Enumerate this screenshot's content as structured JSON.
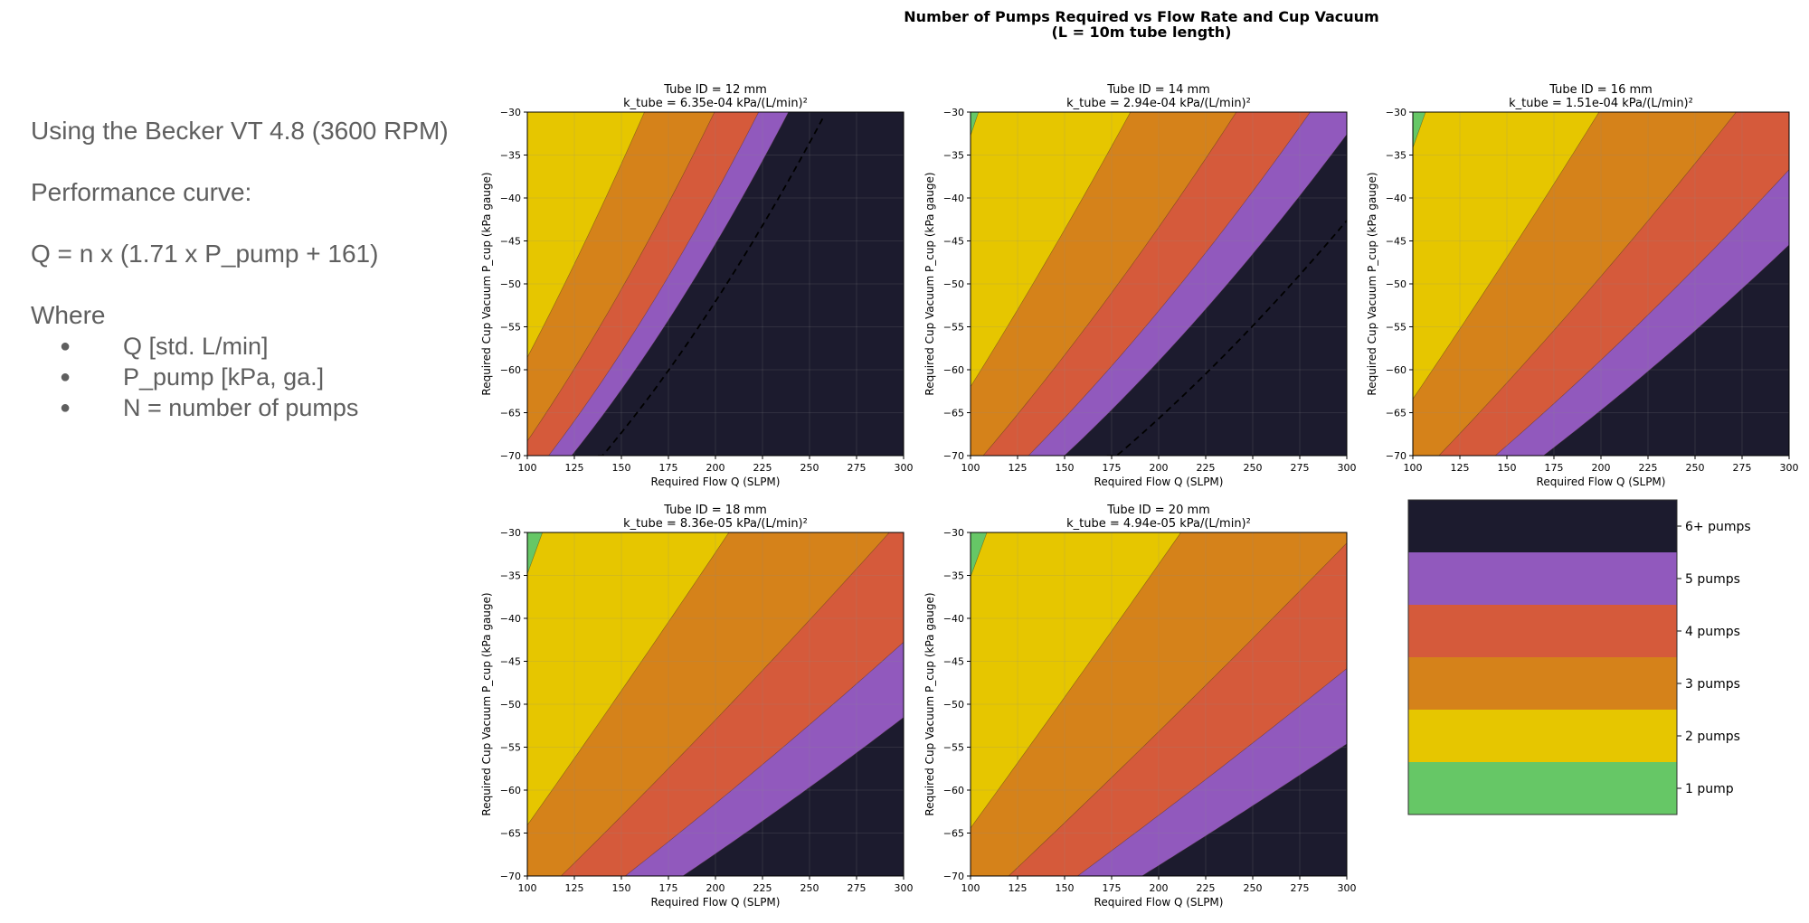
{
  "notes": {
    "title": "Using the Becker VT 4.8 (3600 RPM)",
    "curve_label": "Performance curve:",
    "formula": "Q = n x (1.71 x P_pump + 161)",
    "where": "Where",
    "bullets": [
      "Q [std. L/min]",
      "P_pump [kPa, ga.]",
      "N = number of pumps"
    ]
  },
  "chart_data": {
    "type": "contourf",
    "suptitle": [
      "Number of Pumps Required vs Flow Rate and Cup Vacuum",
      "(L = 10m tube length)"
    ],
    "xlabel": "Required Flow Q (SLPM)",
    "ylabel": "Required Cup Vacuum P_cup (kPa gauge)",
    "xlim": [
      100,
      300
    ],
    "ylim": [
      -70,
      -30
    ],
    "xticks": [
      100,
      125,
      150,
      175,
      200,
      225,
      250,
      275,
      300
    ],
    "yticks": [
      -30,
      -35,
      -40,
      -45,
      -50,
      -55,
      -60,
      -65,
      -70
    ],
    "pump_curve": {
      "slope": 1.71,
      "intercept": 161
    },
    "panels": [
      {
        "title": "Tube ID = 12 mm",
        "ktitle": "k_tube = 6.35e-04 kPa/(L/min)²",
        "k": 0.000635,
        "dashed": true
      },
      {
        "title": "Tube ID = 14 mm",
        "ktitle": "k_tube = 2.94e-04 kPa/(L/min)²",
        "k": 0.000294,
        "dashed": true
      },
      {
        "title": "Tube ID = 16 mm",
        "ktitle": "k_tube = 1.51e-04 kPa/(L/min)²",
        "k": 0.000151,
        "dashed": false
      },
      {
        "title": "Tube ID = 18 mm",
        "ktitle": "k_tube = 8.36e-05 kPa/(L/min)²",
        "k": 8.36e-05,
        "dashed": false
      },
      {
        "title": "Tube ID = 20 mm",
        "ktitle": "k_tube = 4.94e-05 kPa/(L/min)²",
        "k": 4.94e-05,
        "dashed": false
      }
    ],
    "legend": [
      {
        "label": "6+ pumps",
        "color": "#1c1b2e"
      },
      {
        "label": "5 pumps",
        "color": "#9159bd"
      },
      {
        "label": "4 pumps",
        "color": "#d55a3b"
      },
      {
        "label": "3 pumps",
        "color": "#d5821a"
      },
      {
        "label": "2 pumps",
        "color": "#e6c600"
      },
      {
        "label": "1 pump",
        "color": "#66c766"
      }
    ]
  }
}
